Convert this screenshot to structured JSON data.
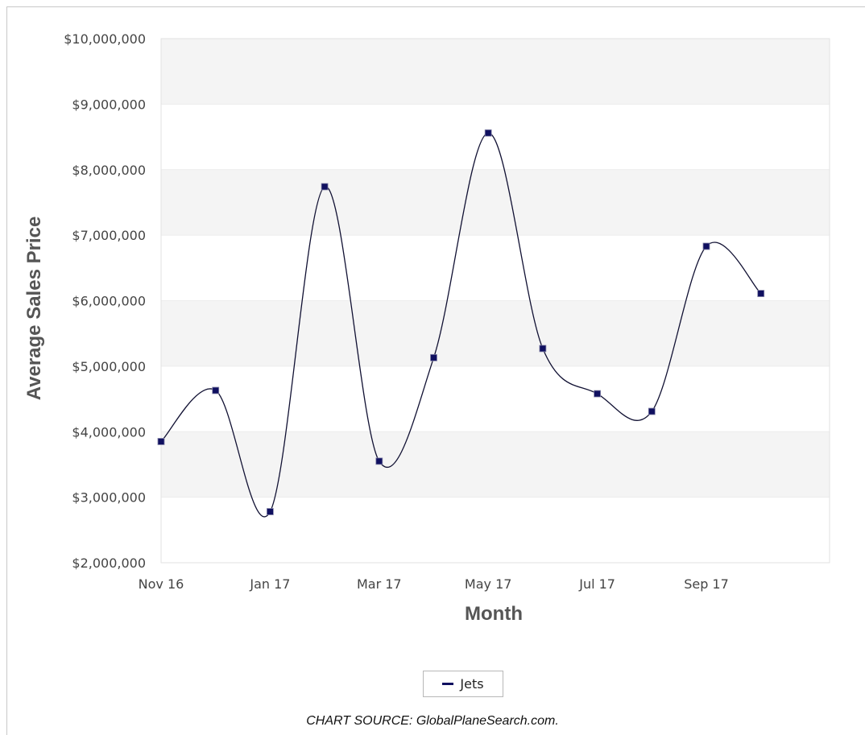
{
  "chart_data": {
    "type": "line",
    "title": "",
    "xlabel": "Month",
    "ylabel": "Average Sales Price",
    "x_tick_labels": [
      "Nov 16",
      "Jan 17",
      "Mar 17",
      "May 17",
      "Jul 17",
      "Sep 17"
    ],
    "y_tick_labels": [
      "$2,000,000",
      "$3,000,000",
      "$4,000,000",
      "$5,000,000",
      "$6,000,000",
      "$7,000,000",
      "$8,000,000",
      "$9,000,000",
      "$10,000,000"
    ],
    "ylim": [
      2000000,
      10000000
    ],
    "x": [
      "Nov 16",
      "Dec 16",
      "Jan 17",
      "Feb 17",
      "Mar 17",
      "Apr 17",
      "May 17",
      "Jun 17",
      "Jul 17",
      "Aug 17",
      "Sep 17",
      "Oct 17"
    ],
    "series": [
      {
        "name": "Jets",
        "color": "#101060",
        "values": [
          3850000,
          4630000,
          2780000,
          7740000,
          3550000,
          5130000,
          8560000,
          5270000,
          4580000,
          4310000,
          6830000,
          6110000
        ]
      }
    ],
    "grid": "horizontal bands",
    "legend": "bottom-center"
  },
  "source_note": "CHART SOURCE: GlobalPlaneSearch.com."
}
